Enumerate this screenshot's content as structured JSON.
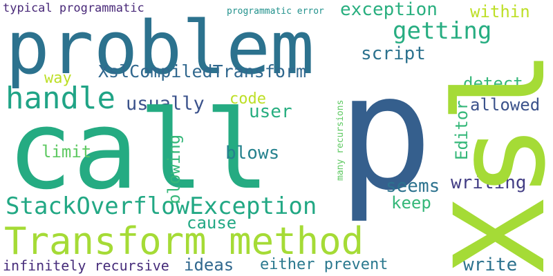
{
  "words": [
    {
      "text": "typical programmatic",
      "color": "#482878"
    },
    {
      "text": "programmatic error",
      "color": "#21918c"
    },
    {
      "text": "problem",
      "color": "#2c728e"
    },
    {
      "text": "exception",
      "color": "#29af7f"
    },
    {
      "text": "within",
      "color": "#bddf26"
    },
    {
      "text": "getting",
      "color": "#27ad81"
    },
    {
      "text": "script",
      "color": "#2c728e"
    },
    {
      "text": "way",
      "color": "#bddf26"
    },
    {
      "text": "XslCompiledTransform",
      "color": "#31688e"
    },
    {
      "text": "handle",
      "color": "#20a486"
    },
    {
      "text": "usually",
      "color": "#3b528b"
    },
    {
      "text": "code",
      "color": "#bddf26"
    },
    {
      "text": "user",
      "color": "#28ae80"
    },
    {
      "text": "detect",
      "color": "#35b779"
    },
    {
      "text": "allowed",
      "color": "#3b528b"
    },
    {
      "text": "Editor",
      "color": "#35b779"
    },
    {
      "text": "many recursions",
      "color": "#5ec962"
    },
    {
      "text": "call",
      "color": "#25ab82"
    },
    {
      "text": "p",
      "color": "#355f8d"
    },
    {
      "text": "Xsl",
      "color": "#a5db36"
    },
    {
      "text": "limit",
      "color": "#5ec962"
    },
    {
      "text": "blows",
      "color": "#26828e"
    },
    {
      "text": "blowing",
      "color": "#35b779"
    },
    {
      "text": "writing",
      "color": "#433e85"
    },
    {
      "text": "seems",
      "color": "#2c728e"
    },
    {
      "text": "StackOverflowException",
      "color": "#22a884"
    },
    {
      "text": "keep",
      "color": "#35b779"
    },
    {
      "text": "cause",
      "color": "#22a884"
    },
    {
      "text": "Transform method",
      "color": "#a5db36"
    },
    {
      "text": "infinitely recursive",
      "color": "#472d7b"
    },
    {
      "text": "ideas",
      "color": "#31688e"
    },
    {
      "text": "either prevent",
      "color": "#2a788e"
    },
    {
      "text": "write",
      "color": "#2c728e"
    }
  ]
}
